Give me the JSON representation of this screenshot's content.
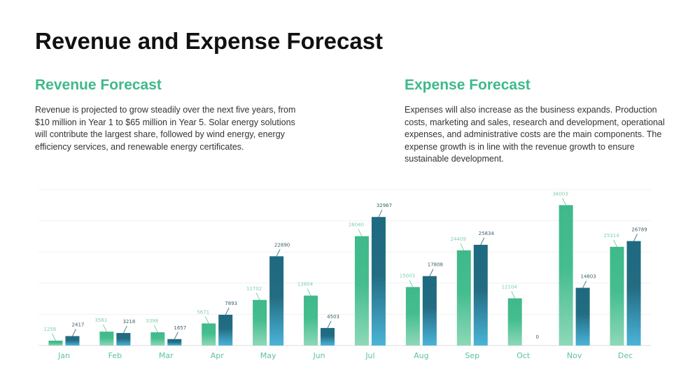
{
  "title": "Revenue and Expense Forecast",
  "revenue": {
    "heading": "Revenue Forecast",
    "text": "Revenue is projected to grow steadily over the next five years, from $10 million in Year 1 to $65 million in Year 5. Solar energy solutions will contribute the largest share, followed by wind energy, energy efficiency services, and renewable energy certificates."
  },
  "expense": {
    "heading": "Expense Forecast",
    "text": "Expenses will also increase as the business expands. Production costs, marketing and sales, research and development, operational expenses, and administrative costs are the main components. The expense growth is in line with the revenue growth to ensure sustainable development."
  },
  "chart_data": {
    "type": "bar",
    "categories": [
      "Jan",
      "Feb",
      "Mar",
      "Apr",
      "May",
      "Jun",
      "Jul",
      "Aug",
      "Sep",
      "Oct",
      "Nov",
      "Dec"
    ],
    "series": [
      {
        "values": [
          1256,
          3561,
          3398,
          5671,
          11702,
          12804,
          28040,
          15003,
          24409,
          12104,
          36003,
          25314
        ],
        "color": "#3fb98a"
      },
      {
        "values": [
          2417,
          3218,
          1657,
          7893,
          22890,
          4503,
          32967,
          17808,
          25834,
          0,
          14803,
          26789
        ],
        "color": "#1e6a80"
      }
    ],
    "ylim": [
      0,
      40000
    ],
    "grid": true,
    "data_labels": true
  }
}
